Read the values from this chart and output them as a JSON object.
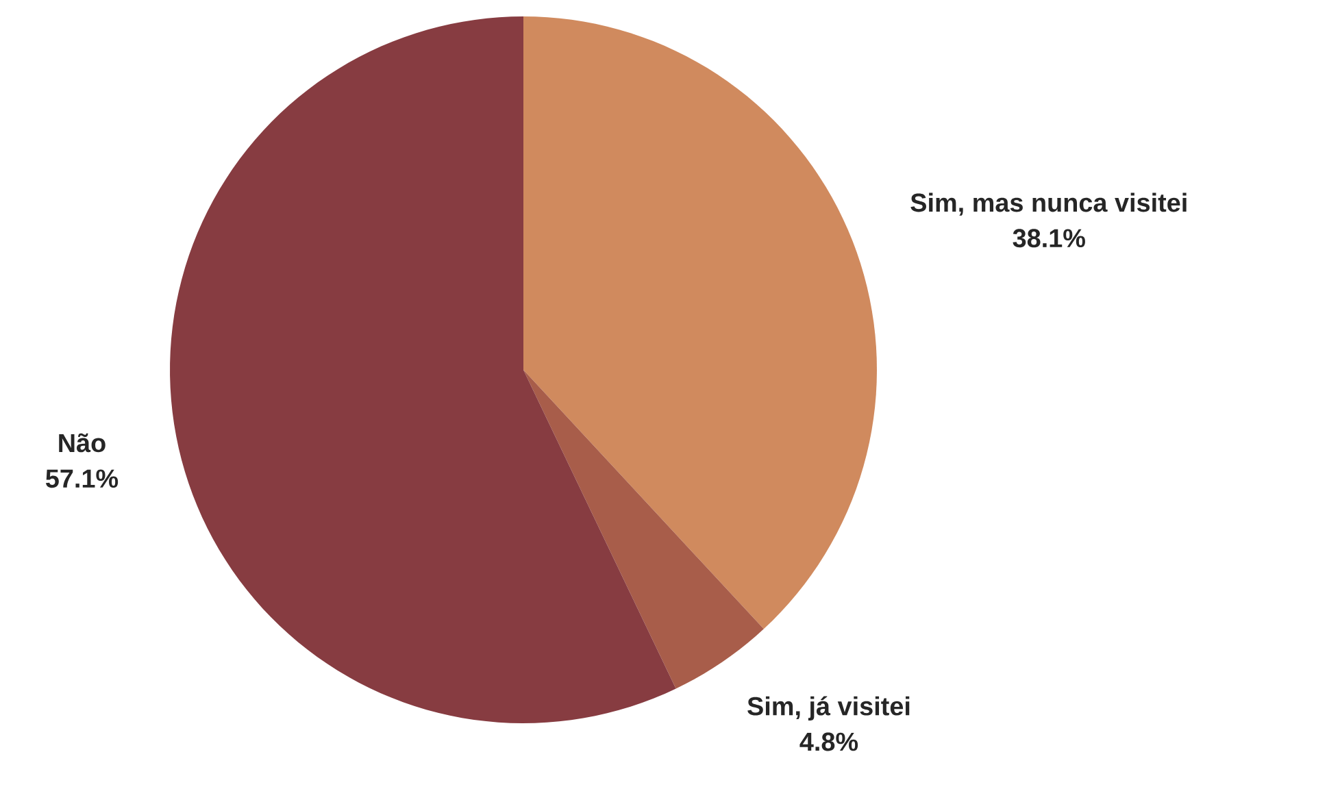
{
  "chart_data": {
    "type": "pie",
    "categories": [
      "Sim, mas nunca visitei",
      "Sim, já visitei",
      "Não"
    ],
    "values": [
      38.1,
      4.8,
      57.1
    ],
    "value_labels": [
      "38.1%",
      "4.8%",
      "57.1%"
    ],
    "colors": [
      "#d08a5e",
      "#a85d4a",
      "#873c41"
    ]
  }
}
